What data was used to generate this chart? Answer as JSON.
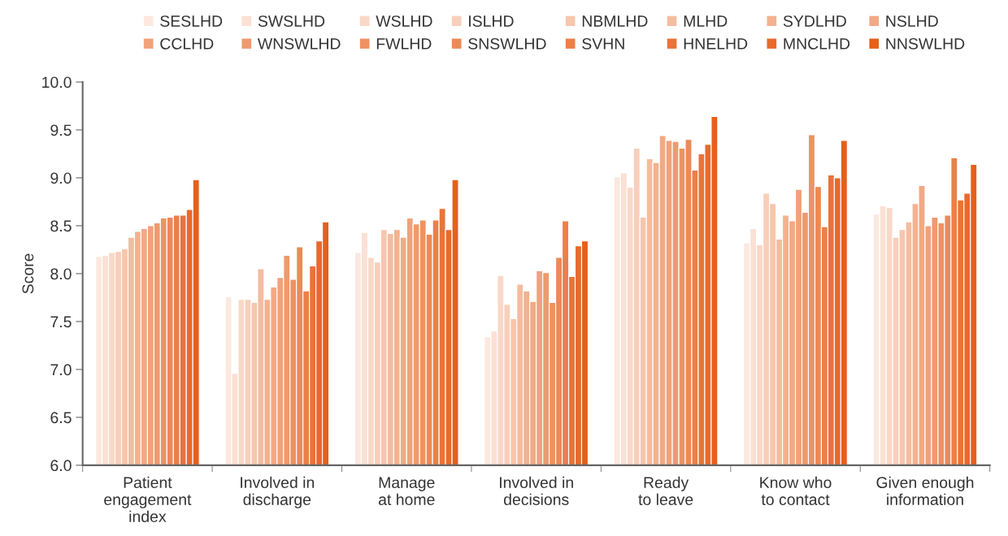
{
  "chart_data": {
    "type": "bar",
    "ylabel": "Score",
    "categories": [
      "Patient\nengagement\nindex",
      "Involved in\ndischarge",
      "Manage\nat home",
      "Involved in\ndecisions",
      "Ready\nto leave",
      "Know who\nto contact",
      "Given enough\ninformation"
    ],
    "ylim": [
      6.0,
      10.0
    ],
    "yticks": [
      {
        "value": 6.0,
        "label": "6.0"
      },
      {
        "value": 6.5,
        "label": "6.5"
      },
      {
        "value": 7.0,
        "label": "7.0"
      },
      {
        "value": 7.5,
        "label": "7.5"
      },
      {
        "value": 8.0,
        "label": "8.0"
      },
      {
        "value": 8.5,
        "label": "8.5"
      },
      {
        "value": 9.0,
        "label": "9.0"
      },
      {
        "value": 9.5,
        "label": "9.5"
      },
      {
        "value": 10.0,
        "label": "10.0"
      }
    ],
    "grid": false,
    "legend": "top",
    "series": [
      {
        "name": "SESLHD",
        "color": "#fce8de",
        "values": [
          8.18,
          7.76,
          8.22,
          7.34,
          9.01,
          8.32,
          8.62
        ]
      },
      {
        "name": "SWSLHD",
        "color": "#fbe0d4",
        "values": [
          8.19,
          6.96,
          8.43,
          7.4,
          9.05,
          8.47,
          8.71
        ]
      },
      {
        "name": "WSLHD",
        "color": "#f9d8c8",
        "values": [
          8.22,
          7.73,
          8.17,
          7.98,
          8.9,
          8.3,
          8.69
        ]
      },
      {
        "name": "ISLHD",
        "color": "#f8cfbb",
        "values": [
          8.23,
          7.73,
          8.12,
          7.68,
          9.31,
          8.84,
          8.38
        ]
      },
      {
        "name": "NBMLHD",
        "color": "#f6c6ad",
        "values": [
          8.26,
          7.7,
          8.46,
          7.53,
          8.59,
          8.73,
          8.46
        ]
      },
      {
        "name": "MLHD",
        "color": "#f5bc9f",
        "values": [
          8.38,
          8.05,
          8.42,
          7.89,
          9.2,
          8.36,
          8.54
        ]
      },
      {
        "name": "SYDLHD",
        "color": "#f3b290",
        "values": [
          8.44,
          7.73,
          8.46,
          7.82,
          9.16,
          8.61,
          8.73
        ]
      },
      {
        "name": "NSLHD",
        "color": "#f2a985",
        "values": [
          8.47,
          7.86,
          8.38,
          7.71,
          9.44,
          8.55,
          8.92
        ]
      },
      {
        "name": "CCLHD",
        "color": "#f0a27a",
        "values": [
          8.5,
          7.96,
          8.58,
          8.03,
          9.39,
          8.88,
          8.5
        ]
      },
      {
        "name": "WNSWLHD",
        "color": "#ef9a6e",
        "values": [
          8.53,
          8.19,
          8.52,
          8.01,
          9.38,
          8.64,
          8.59
        ]
      },
      {
        "name": "FWLHD",
        "color": "#ee9263",
        "values": [
          8.58,
          7.94,
          8.56,
          7.7,
          9.31,
          9.45,
          8.53
        ]
      },
      {
        "name": "SNSWLHD",
        "color": "#ec8a57",
        "values": [
          8.59,
          8.28,
          8.41,
          8.17,
          9.4,
          8.91,
          8.61
        ]
      },
      {
        "name": "SVHN",
        "color": "#eb8049",
        "values": [
          8.61,
          7.82,
          8.56,
          8.55,
          9.08,
          8.49,
          9.21
        ]
      },
      {
        "name": "HNELHD",
        "color": "#e9733a",
        "values": [
          8.61,
          8.08,
          8.68,
          7.97,
          9.25,
          9.03,
          8.77
        ]
      },
      {
        "name": "MNCLHD",
        "color": "#e86a2c",
        "values": [
          8.67,
          8.34,
          8.46,
          8.29,
          9.35,
          9.0,
          8.84
        ]
      },
      {
        "name": "NNSWLHD",
        "color": "#e5601b",
        "values": [
          8.98,
          8.54,
          8.98,
          8.34,
          9.64,
          9.39,
          9.14
        ]
      }
    ]
  }
}
